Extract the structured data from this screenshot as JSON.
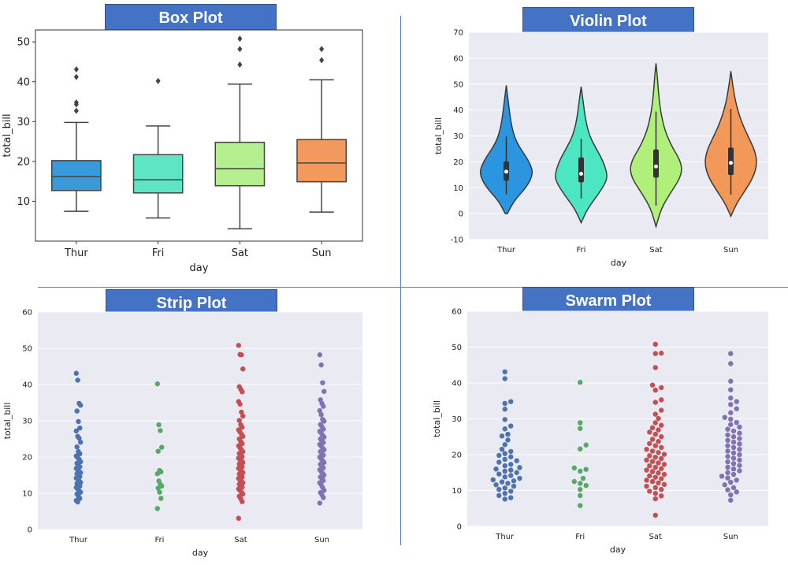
{
  "panels": [
    {
      "title": "Box Plot"
    },
    {
      "title": "Violin Plot"
    },
    {
      "title": "Strip Plot"
    },
    {
      "title": "Swarm Plot"
    }
  ],
  "colors": {
    "title_bg": "#4472c4",
    "box": [
      "#3a9ad9",
      "#5ee6c4",
      "#b5ee8f",
      "#f29a5e"
    ],
    "violin": [
      "#2b95e0",
      "#4ce6c3",
      "#b0f07a",
      "#f2995a"
    ],
    "points": [
      "#4c72b0",
      "#55a868",
      "#c44e52",
      "#8172b2"
    ],
    "axes_bg": "#eaeaf2"
  },
  "chart_data": [
    {
      "type": "box",
      "title": "Box Plot",
      "xlabel": "day",
      "ylabel": "total_bill",
      "categories": [
        "Thur",
        "Fri",
        "Sat",
        "Sun"
      ],
      "ylim": [
        0,
        53
      ],
      "yticks": [
        10,
        20,
        30,
        40,
        50
      ],
      "boxes": [
        {
          "min": 7.5,
          "q1": 12.7,
          "median": 16.2,
          "q3": 20.2,
          "max": 29.8,
          "outliers": [
            32.7,
            34.3,
            34.8,
            41.2,
            43.1
          ]
        },
        {
          "min": 5.8,
          "q1": 12.1,
          "median": 15.4,
          "q3": 21.7,
          "max": 28.9,
          "outliers": [
            40.2
          ]
        },
        {
          "min": 3.1,
          "q1": 13.9,
          "median": 18.2,
          "q3": 24.8,
          "max": 39.4,
          "outliers": [
            44.3,
            48.2,
            50.8
          ]
        },
        {
          "min": 7.3,
          "q1": 14.9,
          "median": 19.6,
          "q3": 25.5,
          "max": 40.5,
          "outliers": [
            45.4,
            48.2
          ]
        }
      ],
      "grid": false
    },
    {
      "type": "violin",
      "title": "Violin Plot",
      "xlabel": "day",
      "ylabel": "total_bill",
      "categories": [
        "Thur",
        "Fri",
        "Sat",
        "Sun"
      ],
      "ylim": [
        -10,
        70
      ],
      "yticks": [
        -10,
        0,
        10,
        20,
        30,
        40,
        50,
        60,
        70
      ],
      "violins": [
        {
          "low": 0,
          "high": 49.5,
          "q1": 12.7,
          "median": 16.2,
          "q3": 20.2,
          "wlow": 7.5,
          "whigh": 29.8,
          "density": [
            [
              0,
              0.04
            ],
            [
              5,
              0.3
            ],
            [
              10,
              0.75
            ],
            [
              14,
              0.97
            ],
            [
              17,
              1.0
            ],
            [
              21,
              0.82
            ],
            [
              26,
              0.48
            ],
            [
              30,
              0.3
            ],
            [
              35,
              0.18
            ],
            [
              42,
              0.09
            ],
            [
              49.5,
              0
            ]
          ]
        },
        {
          "low": -3.5,
          "high": 49,
          "q1": 12.1,
          "median": 15.4,
          "q3": 21.7,
          "wlow": 5.8,
          "whigh": 28.9,
          "density": [
            [
              -3.5,
              0
            ],
            [
              2,
              0.25
            ],
            [
              7,
              0.62
            ],
            [
              12,
              0.94
            ],
            [
              15,
              1.0
            ],
            [
              20,
              0.85
            ],
            [
              25,
              0.58
            ],
            [
              30,
              0.32
            ],
            [
              36,
              0.17
            ],
            [
              43,
              0.08
            ],
            [
              49,
              0
            ]
          ]
        },
        {
          "low": -5,
          "high": 58,
          "q1": 13.9,
          "median": 18.2,
          "q3": 24.8,
          "wlow": 3.1,
          "whigh": 39.4,
          "density": [
            [
              -5,
              0
            ],
            [
              2,
              0.2
            ],
            [
              8,
              0.55
            ],
            [
              13,
              0.88
            ],
            [
              17,
              1.0
            ],
            [
              21,
              0.9
            ],
            [
              26,
              0.6
            ],
            [
              32,
              0.34
            ],
            [
              39,
              0.18
            ],
            [
              46,
              0.1
            ],
            [
              53,
              0.05
            ],
            [
              58,
              0
            ]
          ]
        },
        {
          "low": -1,
          "high": 55,
          "q1": 14.9,
          "median": 19.6,
          "q3": 25.5,
          "wlow": 7.3,
          "whigh": 40.5,
          "density": [
            [
              -1,
              0
            ],
            [
              4,
              0.22
            ],
            [
              9,
              0.55
            ],
            [
              14,
              0.85
            ],
            [
              19,
              1.0
            ],
            [
              24,
              0.93
            ],
            [
              30,
              0.65
            ],
            [
              36,
              0.38
            ],
            [
              43,
              0.18
            ],
            [
              49,
              0.08
            ],
            [
              55,
              0
            ]
          ]
        }
      ],
      "grid": true
    },
    {
      "type": "strip",
      "title": "Strip Plot",
      "xlabel": "day",
      "ylabel": "total_bill",
      "categories": [
        "Thur",
        "Fri",
        "Sat",
        "Sun"
      ],
      "ylim": [
        0,
        60
      ],
      "yticks": [
        0,
        10,
        20,
        30,
        40,
        50,
        60
      ],
      "values": [
        [
          43.1,
          41.2,
          34.8,
          34.3,
          32.7,
          29.8,
          28.0,
          27.2,
          25.7,
          25.2,
          24.1,
          22.8,
          21.5,
          20.9,
          20.3,
          19.8,
          19.4,
          18.7,
          18.3,
          17.9,
          17.3,
          16.9,
          16.4,
          16.0,
          15.7,
          15.4,
          15.0,
          14.6,
          14.2,
          13.8,
          13.4,
          13.0,
          12.7,
          12.4,
          12.0,
          11.6,
          11.2,
          10.7,
          10.3,
          9.8,
          9.2,
          8.6,
          8.0,
          7.6
        ],
        [
          40.2,
          28.9,
          27.3,
          22.7,
          21.6,
          16.3,
          15.9,
          15.4,
          13.4,
          12.5,
          12.0,
          11.4,
          10.3,
          8.6,
          5.8
        ],
        [
          50.8,
          48.3,
          48.2,
          44.3,
          39.4,
          38.7,
          38.0,
          35.3,
          34.6,
          32.4,
          31.3,
          30.1,
          28.9,
          28.2,
          27.5,
          26.9,
          26.3,
          25.7,
          25.0,
          24.3,
          23.7,
          23.1,
          22.5,
          22.0,
          21.5,
          21.0,
          20.6,
          20.1,
          19.7,
          19.3,
          18.9,
          18.5,
          18.1,
          17.7,
          17.3,
          16.9,
          16.5,
          16.1,
          15.7,
          15.3,
          14.9,
          14.5,
          14.1,
          13.7,
          13.3,
          12.9,
          12.5,
          12.1,
          11.7,
          11.2,
          10.8,
          10.3,
          9.8,
          9.2,
          8.5,
          7.7,
          3.1
        ],
        [
          48.2,
          45.4,
          40.5,
          38.1,
          35.8,
          34.8,
          34.0,
          32.8,
          31.7,
          30.4,
          29.9,
          29.0,
          28.4,
          27.7,
          27.1,
          26.6,
          26.0,
          25.5,
          25.0,
          24.5,
          24.0,
          23.5,
          23.0,
          22.5,
          22.0,
          21.5,
          21.0,
          20.5,
          20.0,
          19.5,
          19.0,
          18.5,
          18.0,
          17.5,
          17.0,
          16.5,
          16.0,
          15.5,
          15.0,
          14.5,
          14.0,
          13.5,
          12.9,
          12.3,
          11.6,
          10.8,
          10.2,
          9.6,
          8.8,
          7.3
        ]
      ],
      "grid": true
    },
    {
      "type": "swarm",
      "title": "Swarm Plot",
      "xlabel": "day",
      "ylabel": "total_bill",
      "categories": [
        "Thur",
        "Fri",
        "Sat",
        "Sun"
      ],
      "ylim": [
        0,
        60
      ],
      "yticks": [
        0,
        10,
        20,
        30,
        40,
        50,
        60
      ],
      "values_ref": "same as Strip Plot",
      "grid": true
    }
  ]
}
